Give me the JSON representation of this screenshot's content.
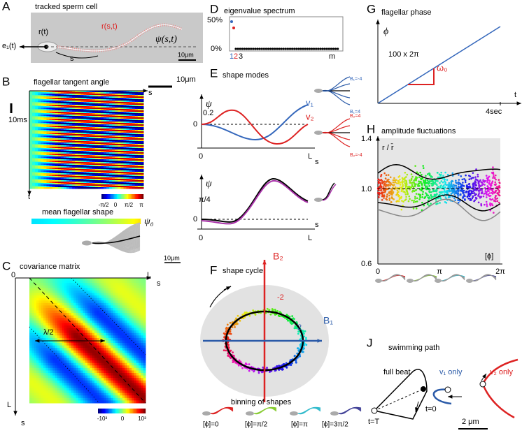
{
  "panel_a": {
    "label": "A",
    "title": "tracked sperm cell",
    "r_t": "r(t)",
    "r_st": "r(s,t)",
    "psi": "ψ(s,t)",
    "e1": "e₁(t)",
    "s": "s",
    "scale": "10μm"
  },
  "panel_b": {
    "label": "B",
    "title": "flagellar tangent angle",
    "scale": "10μm",
    "time_scale": "10ms",
    "s": "s",
    "t": "t",
    "cbar": [
      "-π/2",
      "0",
      "π/2",
      "π"
    ],
    "mean_title": "mean flagellar shape",
    "psi0": "ψ₀",
    "mean_scale": "10μm"
  },
  "panel_c": {
    "label": "C",
    "title": "covariance matrix",
    "zero": "0",
    "L_top": "L",
    "s_top": "s",
    "L_left": "L",
    "s_left": "s",
    "lambda": "λ/2",
    "cbar": [
      "-10³",
      "0",
      "10³"
    ]
  },
  "panel_d": {
    "label": "D",
    "title": "eigenvalue spectrum",
    "y_top": "50%",
    "y_bottom": "0%",
    "x1": "1",
    "x2": "2",
    "x3": "3",
    "xm": "m"
  },
  "panel_e": {
    "label": "E",
    "title": "shape modes",
    "psi_top": "ψ",
    "y02": "0.2",
    "y0": "0",
    "x0": "0",
    "xL": "L",
    "v1": "v₁",
    "v2": "v₂",
    "s_top": "s",
    "b1_top": "B₁=-4",
    "b1_bot": "B₁=4",
    "b2_top": "B₂=4",
    "b2_bot": "B₂=-4",
    "psi_bottom": "ψ",
    "ypi4": "π/4",
    "y0b": "0",
    "x0b": "0",
    "xLb": "L",
    "s_bottom": "s"
  },
  "panel_f": {
    "label": "F",
    "title": "shape cycle",
    "b2": "B₂",
    "b1": "B₁",
    "tick_b2": "-2",
    "tick_b1": "2",
    "binning": "binning of shapes",
    "bins": [
      "[ϕ]=0",
      "[ϕ]=π/2",
      "[ϕ]=π",
      "[ϕ]=3π/2"
    ]
  },
  "panel_g": {
    "label": "G",
    "title": "flagellar phase",
    "phi": "ϕ",
    "cycles": "100 x 2π",
    "omega": "ω₀",
    "t": "t",
    "time": "4sec"
  },
  "panel_h": {
    "label": "H",
    "title": "amplitude fluctuations",
    "ylabel": "r / r̄",
    "y14": "1.4",
    "y10": "1.0",
    "y06": "0.6",
    "x0": "0",
    "xpi": "π",
    "x2pi": "2π",
    "xlabel": "[ϕ]"
  },
  "panel_j": {
    "label": "J",
    "title": "swimming path",
    "full": "full beat",
    "v1": "v₁ only",
    "v2": "v₂ only",
    "t0": "t=0",
    "tT": "t=T",
    "scale": "2 μm"
  }
}
